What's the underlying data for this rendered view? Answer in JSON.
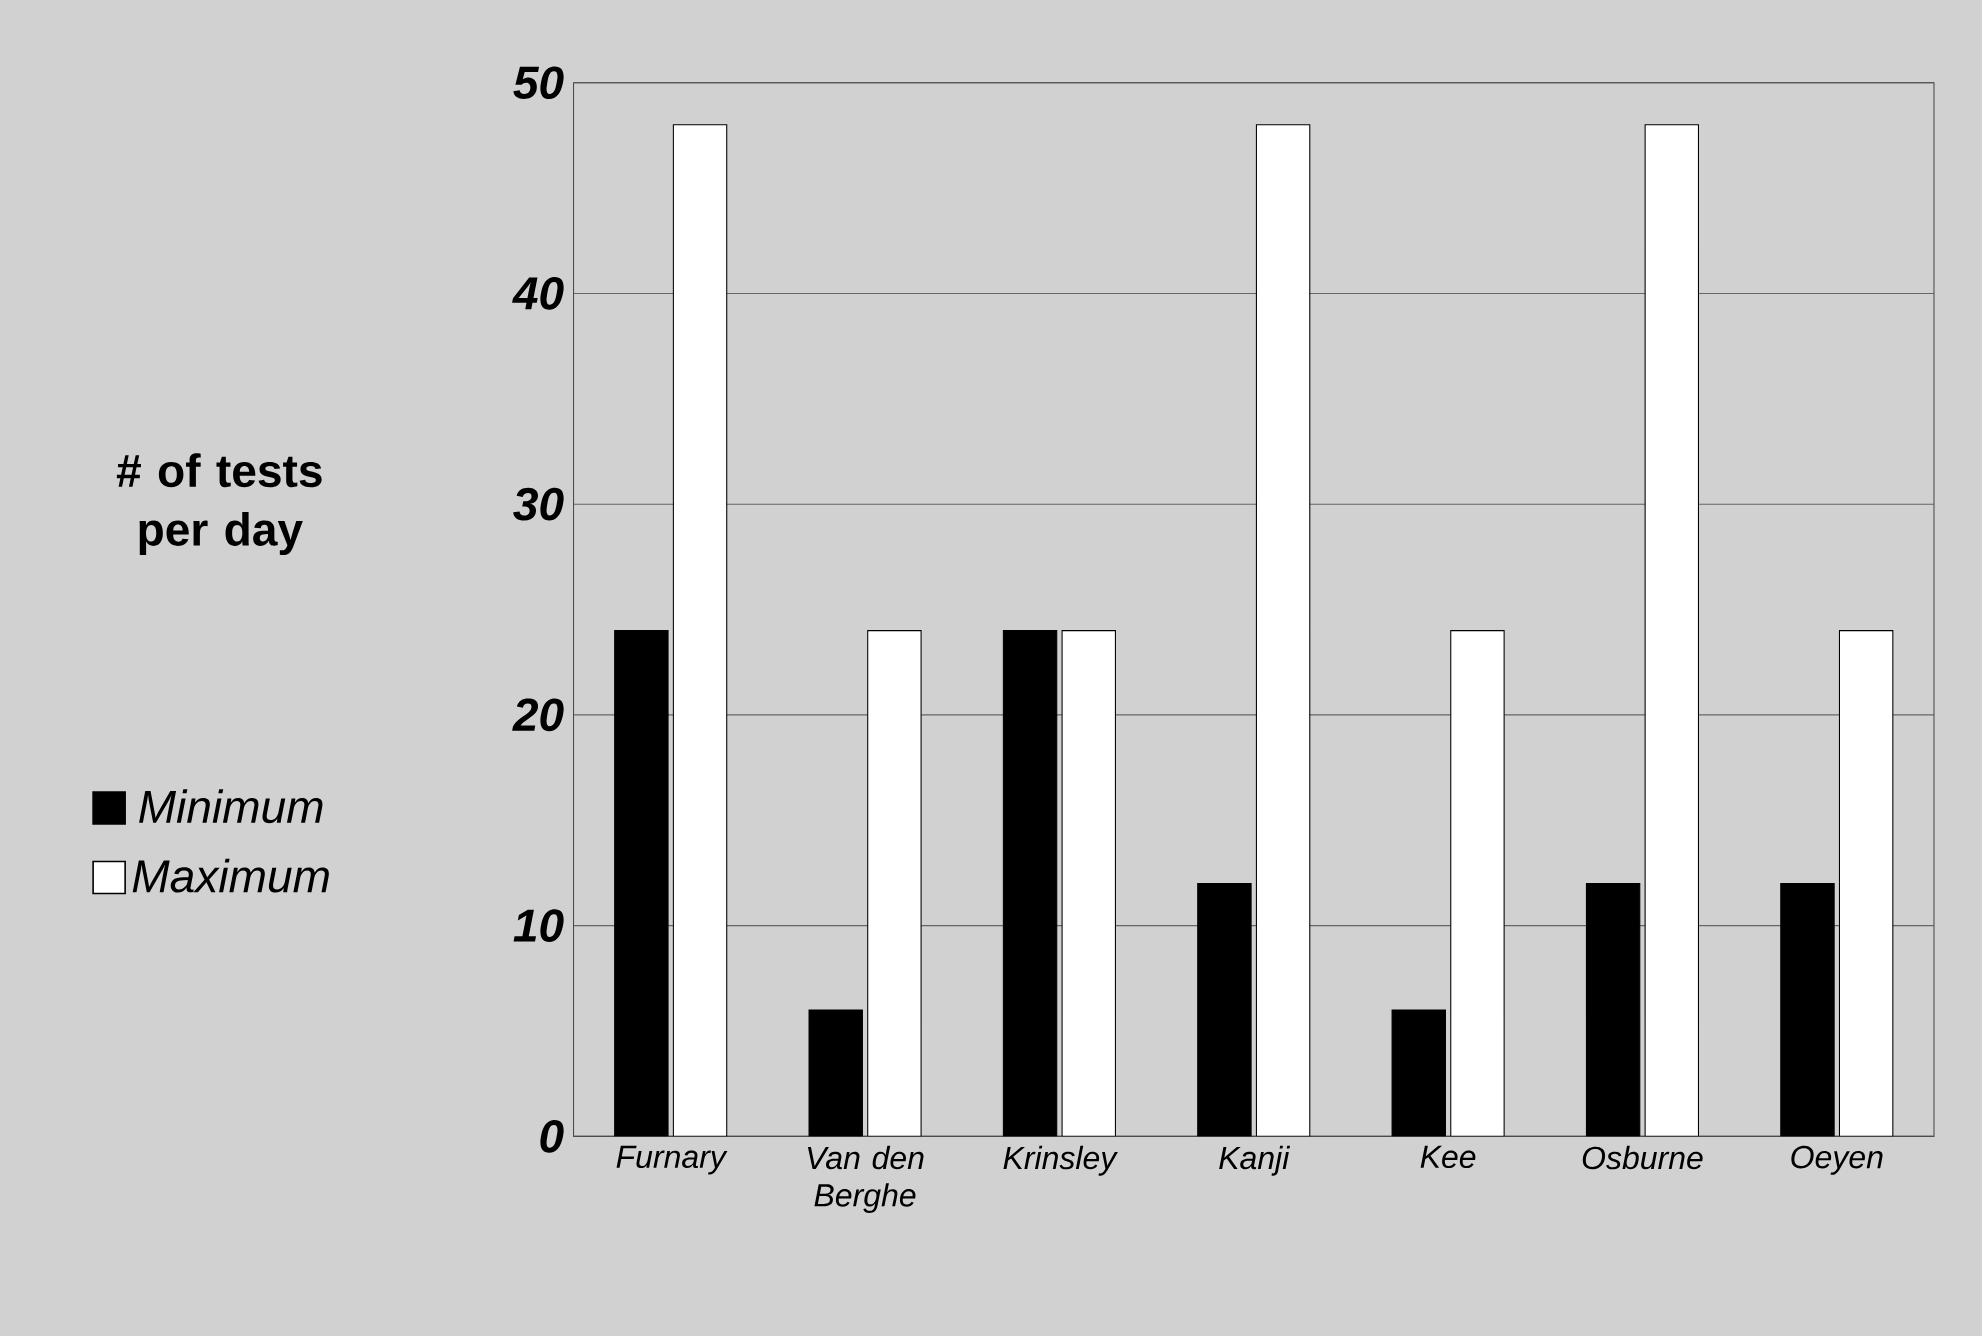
{
  "chart_data": {
    "type": "bar",
    "ylabel": "# of tests per day",
    "categories": [
      "Furnary",
      "Van den Berghe",
      "Krinsley",
      "Kanji",
      "Kee",
      "Osburne",
      "Oeyen"
    ],
    "series": [
      {
        "name": "Minimum",
        "color": "#000000",
        "values": [
          24,
          6,
          24,
          12,
          6,
          12,
          12
        ]
      },
      {
        "name": "Maximum",
        "color": "#ffffff",
        "values": [
          48,
          24,
          24,
          48,
          24,
          48,
          24
        ]
      }
    ],
    "ylim": [
      0,
      50
    ],
    "yticks": [
      0,
      10,
      20,
      30,
      40,
      50
    ],
    "grid": "y",
    "legend": "left"
  }
}
